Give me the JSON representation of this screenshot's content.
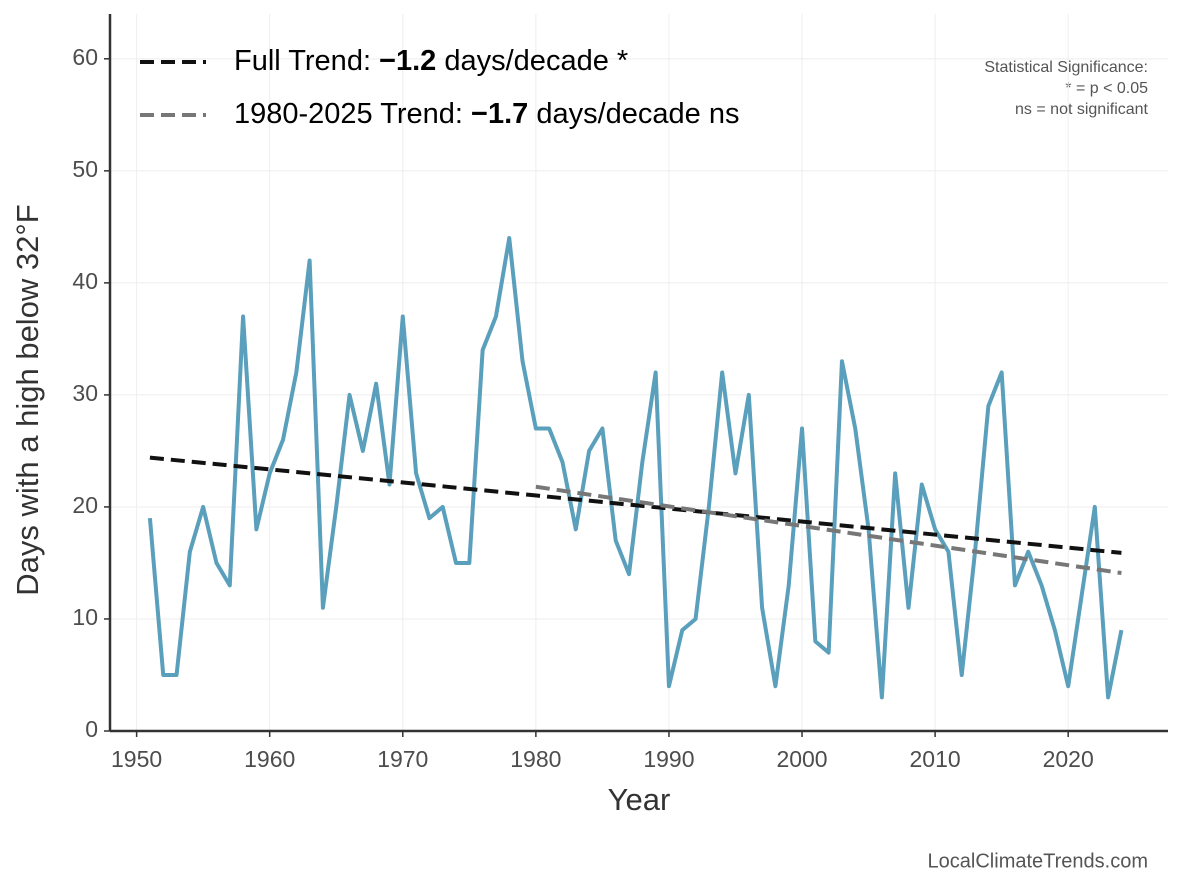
{
  "chart_data": {
    "type": "line",
    "xlabel": "Year",
    "ylabel": "Days with a high below 32°F",
    "xlim": [
      1948,
      2027.5
    ],
    "ylim": [
      0,
      64
    ],
    "xticks": [
      1950,
      1960,
      1970,
      1980,
      1990,
      2000,
      2010,
      2020
    ],
    "yticks": [
      0,
      10,
      20,
      30,
      40,
      50,
      60
    ],
    "grid": true,
    "legend": "upper left",
    "data": {
      "color": "#5a9fbb",
      "x": [
        1951,
        1952,
        1953,
        1954,
        1955,
        1956,
        1957,
        1958,
        1959,
        1960,
        1961,
        1962,
        1963,
        1964,
        1965,
        1966,
        1967,
        1968,
        1969,
        1970,
        1971,
        1972,
        1973,
        1974,
        1975,
        1976,
        1977,
        1978,
        1979,
        1980,
        1981,
        1982,
        1983,
        1984,
        1985,
        1986,
        1987,
        1988,
        1989,
        1990,
        1991,
        1992,
        1993,
        1994,
        1995,
        1996,
        1997,
        1998,
        1999,
        2000,
        2001,
        2002,
        2003,
        2004,
        2005,
        2006,
        2007,
        2008,
        2009,
        2010,
        2011,
        2012,
        2013,
        2014,
        2015,
        2016,
        2017,
        2018,
        2019,
        2020,
        2021,
        2022,
        2023,
        2024
      ],
      "values": [
        19,
        5,
        5,
        16,
        20,
        15,
        13,
        37,
        18,
        23,
        26,
        32,
        42,
        11,
        20,
        30,
        25,
        31,
        22,
        37,
        23,
        19,
        20,
        15,
        15,
        34,
        37,
        44,
        33,
        27,
        27,
        24,
        18,
        25,
        27,
        17,
        14,
        24,
        32,
        4,
        9,
        10,
        20,
        32,
        23,
        30,
        11,
        4,
        13,
        27,
        8,
        7,
        33,
        27,
        18,
        3,
        23,
        11,
        22,
        18,
        16,
        5,
        16,
        29,
        32,
        13,
        16,
        13,
        9,
        4,
        12,
        20,
        3,
        9
      ]
    },
    "series": [
      {
        "name": [
          "Full Trend: ",
          "−1.2",
          " days/decade *"
        ],
        "color": "#111111",
        "x": [
          1951,
          2024
        ],
        "values": [
          24.4,
          15.9
        ]
      },
      {
        "name": [
          "1980-2025 Trend: ",
          "−1.7",
          " days/decade ns"
        ],
        "color": "#777777",
        "x": [
          1980,
          2024
        ],
        "values": [
          21.8,
          14.1
        ]
      }
    ],
    "annotations": [
      "Statistical Significance:",
      "* = p < 0.05",
      "ns = not significant"
    ],
    "source": "LocalClimateTrends.com"
  }
}
